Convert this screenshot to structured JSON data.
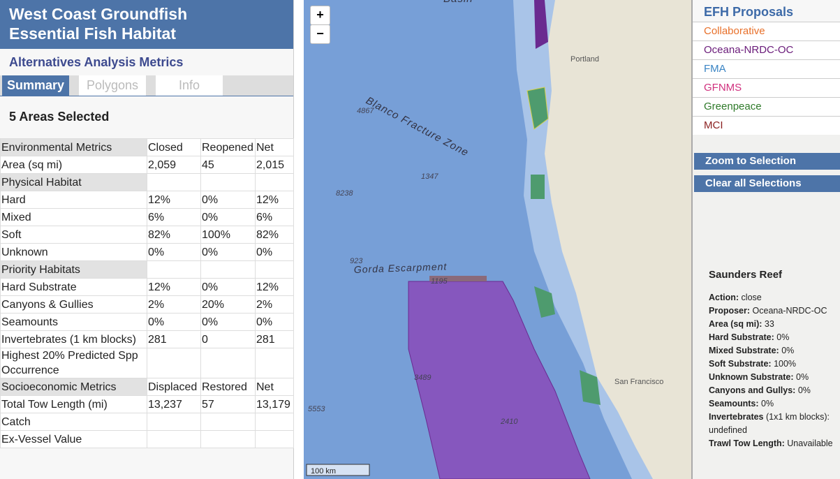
{
  "sidebar": {
    "title_line1": "West Coast Groundfish",
    "title_line2": "Essential Fish Habitat",
    "subtitle": "Alternatives Analysis Metrics",
    "tabs": [
      "Summary",
      "Polygons",
      "Info"
    ],
    "selection_heading": "5 Areas Selected",
    "table": {
      "rows": [
        {
          "section": true,
          "cells": [
            "Environmental Metrics",
            "Closed",
            "Reopened",
            "Net"
          ]
        },
        {
          "cells": [
            "Area (sq mi)",
            "2,059",
            "45",
            "2,015"
          ]
        },
        {
          "section": true,
          "cells": [
            "Physical Habitat",
            null,
            null,
            null
          ]
        },
        {
          "cells": [
            "Hard",
            "12%",
            "0%",
            "12%"
          ]
        },
        {
          "cells": [
            "Mixed",
            "6%",
            "0%",
            "6%"
          ]
        },
        {
          "cells": [
            "Soft",
            "82%",
            "100%",
            "82%"
          ]
        },
        {
          "cells": [
            "Unknown",
            "0%",
            "0%",
            "0%"
          ]
        },
        {
          "section": true,
          "cells": [
            "Priority Habitats",
            null,
            null,
            null
          ]
        },
        {
          "cells": [
            "Hard Substrate",
            "12%",
            "0%",
            "12%"
          ]
        },
        {
          "cells": [
            "Canyons & Gullies",
            "2%",
            "20%",
            "2%"
          ]
        },
        {
          "cells": [
            "Seamounts",
            "0%",
            "0%",
            "0%"
          ]
        },
        {
          "cells": [
            "Invertebrates (1 km blocks)",
            "281",
            "0",
            "281"
          ]
        },
        {
          "cells": [
            "Highest 20% Predicted Spp Occurrence",
            null,
            null,
            null
          ]
        },
        {
          "section": true,
          "cells": [
            "Socioeconomic Metrics",
            "Displaced",
            "Restored",
            "Net"
          ]
        },
        {
          "cells": [
            "Total Tow Length (mi)",
            "13,237",
            "57",
            "13,179"
          ]
        },
        {
          "cells": [
            "Catch",
            null,
            null,
            null
          ]
        },
        {
          "cells": [
            "Ex-Vessel Value",
            null,
            null,
            null
          ]
        }
      ]
    }
  },
  "map": {
    "zoom_in": "+",
    "zoom_out": "−",
    "labels": [
      "Basin",
      "Blanco Fracture Zone",
      "Gorda Escarpment",
      "Portland",
      "San Francisco"
    ],
    "depths": [
      "4867",
      "1347",
      "8238",
      "923",
      "1195",
      "3489",
      "5553",
      "2410"
    ],
    "scale": "100 km"
  },
  "panel": {
    "title": "EFH Proposals",
    "proposals": [
      {
        "name": "Collaborative",
        "color": "#e8702a"
      },
      {
        "name": "Oceana-NRDC-OC",
        "color": "#6a1b7a"
      },
      {
        "name": "FMA",
        "color": "#3a84c4"
      },
      {
        "name": "GFNMS",
        "color": "#d0307e"
      },
      {
        "name": "Greenpeace",
        "color": "#2f7a2a"
      },
      {
        "name": "MCI",
        "color": "#8a1f1f"
      }
    ],
    "buttons": [
      "Zoom to Selection",
      "Clear all Selections"
    ],
    "info": {
      "title": "Saunders Reef",
      "fields": [
        {
          "label": "Action:",
          "value": "close"
        },
        {
          "label": "Proposer:",
          "value": "Oceana-NRDC-OC"
        },
        {
          "label": "Area (sq mi):",
          "value": "33"
        },
        {
          "label": "Hard Substrate:",
          "value": "0%"
        },
        {
          "label": "Mixed Substrate:",
          "value": "0%"
        },
        {
          "label": "Soft Substrate:",
          "value": "100%"
        },
        {
          "label": "Unknown Substrate:",
          "value": "0%"
        },
        {
          "label": "Canyons and Gullys:",
          "value": "0%"
        },
        {
          "label": "Seamounts:",
          "value": "0%"
        },
        {
          "label": "Invertebrates",
          "value": "(1x1 km blocks): undefined"
        },
        {
          "label": "Trawl Tow Length:",
          "value": "Unavailable"
        }
      ]
    }
  }
}
